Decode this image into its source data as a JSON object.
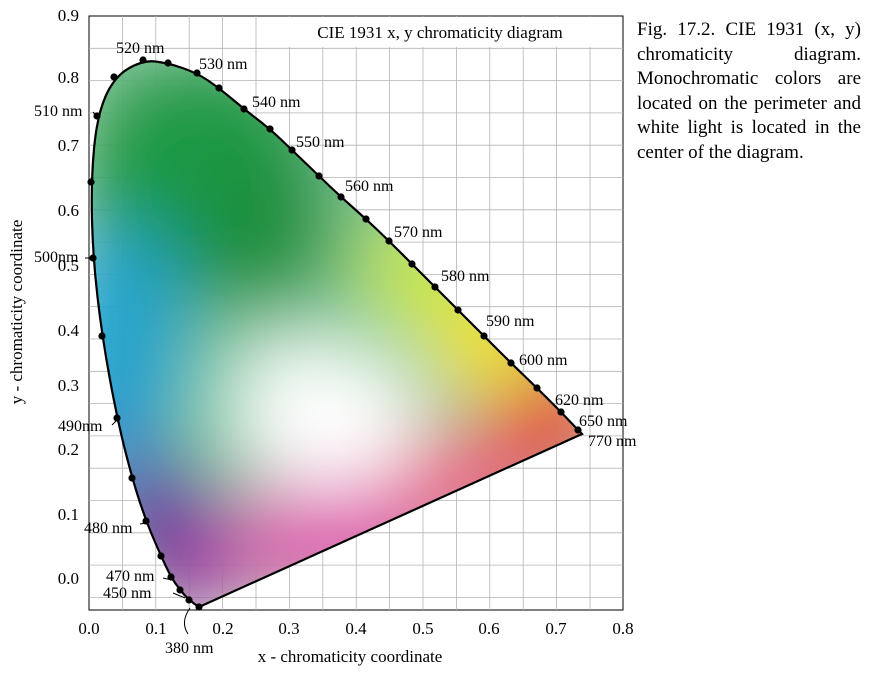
{
  "figure": {
    "inner_title": "CIE 1931 x, y chromaticity diagram",
    "x_axis_title": "x - chromaticity coordinate",
    "y_axis_title": "y - chromaticity coordinate",
    "x_ticks": [
      "0.0",
      "0.1",
      "0.2",
      "0.3",
      "0.4",
      "0.5",
      "0.6",
      "0.7",
      "0.8"
    ],
    "y_ticks": [
      "0.0",
      "0.1",
      "0.2",
      "0.3",
      "0.4",
      "0.5",
      "0.6",
      "0.7",
      "0.8",
      "0.9"
    ],
    "wavelength_labels": [
      "380 nm",
      "450 nm",
      "470 nm",
      "480 nm",
      "490nm",
      "500nm",
      "510 nm",
      "520 nm",
      "530 nm",
      "540 nm",
      "550 nm",
      "560 nm",
      "570 nm",
      "580 nm",
      "590 nm",
      "600 nm",
      "620 nm",
      "650 nm",
      "770 nm"
    ]
  },
  "caption": {
    "text": "Fig. 17.2. CIE 1931 (x, y) chromaticity diagram. Monochromatic colors are located on the perimeter and white light is located in the center of the diagram."
  }
}
